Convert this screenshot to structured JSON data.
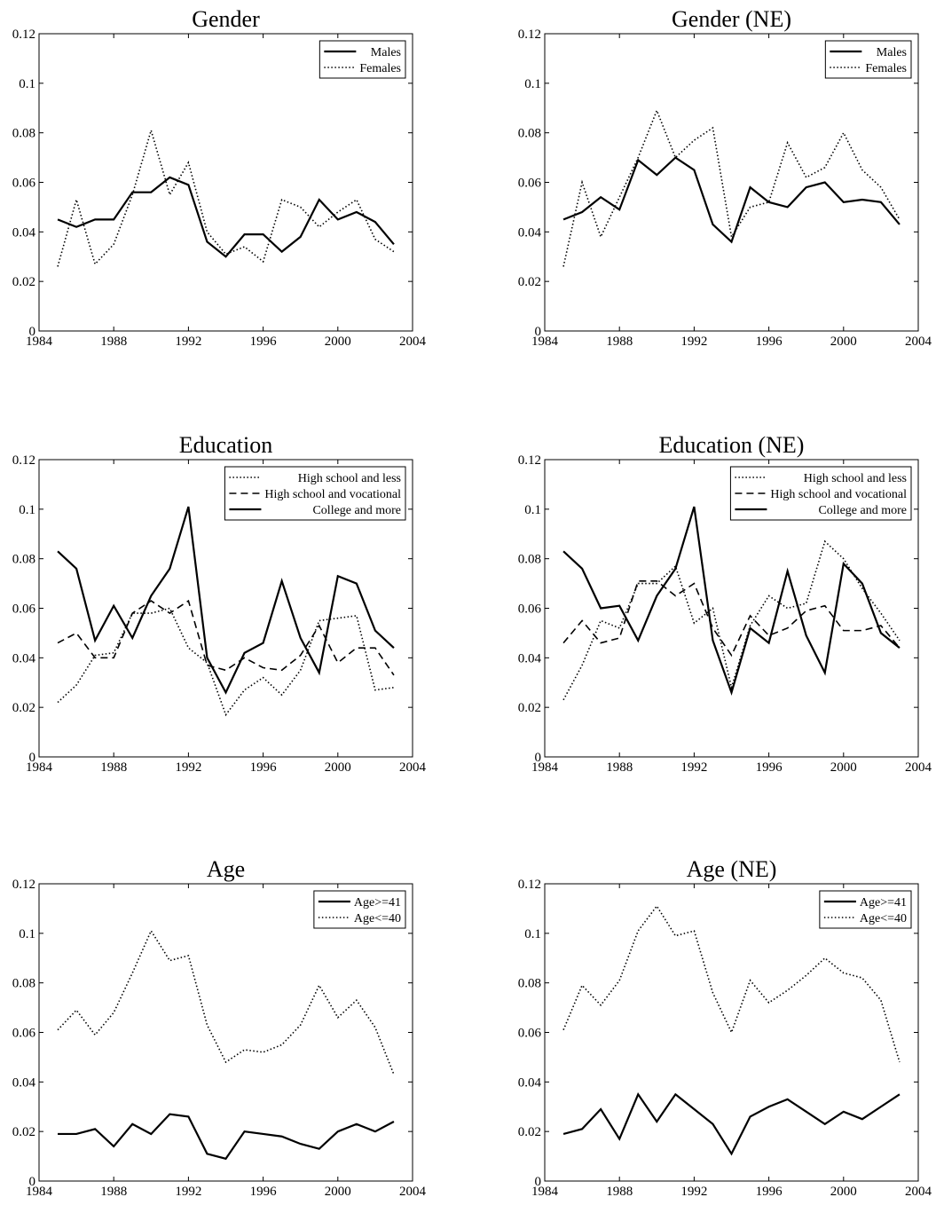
{
  "chart_data": [
    {
      "type": "line",
      "title": "Gender",
      "x": [
        1985,
        1986,
        1987,
        1988,
        1989,
        1990,
        1991,
        1992,
        1993,
        1994,
        1995,
        1996,
        1997,
        1998,
        1999,
        2000,
        2001,
        2002,
        2003
      ],
      "xlim": [
        1984,
        2004
      ],
      "xticks": [
        1984,
        1988,
        1992,
        1996,
        2000,
        2004
      ],
      "ylim": [
        0,
        0.12
      ],
      "yticks": [
        0,
        0.02,
        0.04,
        0.06,
        0.08,
        0.1,
        0.12
      ],
      "legend": "upper right",
      "series": [
        {
          "name": "Males",
          "color": "#000000",
          "style": "solid",
          "values": [
            0.045,
            0.042,
            0.045,
            0.045,
            0.056,
            0.056,
            0.062,
            0.059,
            0.036,
            0.03,
            0.039,
            0.039,
            0.032,
            0.038,
            0.053,
            0.045,
            0.048,
            0.044,
            0.035
          ]
        },
        {
          "name": "Females",
          "color": "#000000",
          "style": "dotted",
          "values": [
            0.026,
            0.053,
            0.027,
            0.035,
            0.055,
            0.081,
            0.055,
            0.068,
            0.04,
            0.031,
            0.034,
            0.028,
            0.053,
            0.05,
            0.042,
            0.048,
            0.053,
            0.037,
            0.032
          ]
        }
      ]
    },
    {
      "type": "line",
      "title": "Gender (NE)",
      "x": [
        1985,
        1986,
        1987,
        1988,
        1989,
        1990,
        1991,
        1992,
        1993,
        1994,
        1995,
        1996,
        1997,
        1998,
        1999,
        2000,
        2001,
        2002,
        2003
      ],
      "xlim": [
        1984,
        2004
      ],
      "xticks": [
        1984,
        1988,
        1992,
        1996,
        2000,
        2004
      ],
      "ylim": [
        0,
        0.12
      ],
      "yticks": [
        0,
        0.02,
        0.04,
        0.06,
        0.08,
        0.1,
        0.12
      ],
      "legend": "upper right",
      "series": [
        {
          "name": "Males",
          "color": "#000000",
          "style": "solid",
          "values": [
            0.045,
            0.048,
            0.054,
            0.049,
            0.069,
            0.063,
            0.07,
            0.065,
            0.043,
            0.036,
            0.058,
            0.052,
            0.05,
            0.058,
            0.06,
            0.052,
            0.053,
            0.052,
            0.043
          ]
        },
        {
          "name": "Females",
          "color": "#000000",
          "style": "dotted",
          "values": [
            0.026,
            0.06,
            0.038,
            0.054,
            0.07,
            0.089,
            0.07,
            0.077,
            0.082,
            0.038,
            0.05,
            0.052,
            0.076,
            0.062,
            0.066,
            0.08,
            0.065,
            0.058,
            0.045
          ]
        }
      ]
    },
    {
      "type": "line",
      "title": "Education",
      "x": [
        1985,
        1986,
        1987,
        1988,
        1989,
        1990,
        1991,
        1992,
        1993,
        1994,
        1995,
        1996,
        1997,
        1998,
        1999,
        2000,
        2001,
        2002,
        2003
      ],
      "xlim": [
        1984,
        2004
      ],
      "xticks": [
        1984,
        1988,
        1992,
        1996,
        2000,
        2004
      ],
      "ylim": [
        0,
        0.12
      ],
      "yticks": [
        0,
        0.02,
        0.04,
        0.06,
        0.08,
        0.1,
        0.12
      ],
      "legend": "upper right",
      "series": [
        {
          "name": "High school and less",
          "color": "#000000",
          "style": "dotted",
          "values": [
            0.022,
            0.029,
            0.041,
            0.042,
            0.058,
            0.058,
            0.06,
            0.044,
            0.038,
            0.017,
            0.027,
            0.032,
            0.025,
            0.035,
            0.055,
            0.056,
            0.057,
            0.027,
            0.028
          ]
        },
        {
          "name": "High school and vocational",
          "color": "#000000",
          "style": "dashed",
          "values": [
            0.046,
            0.05,
            0.04,
            0.04,
            0.058,
            0.063,
            0.058,
            0.063,
            0.037,
            0.035,
            0.04,
            0.036,
            0.035,
            0.041,
            0.053,
            0.038,
            0.044,
            0.044,
            0.033
          ]
        },
        {
          "name": "College and more",
          "color": "#000000",
          "style": "solid",
          "values": [
            0.083,
            0.076,
            0.047,
            0.061,
            0.048,
            0.065,
            0.076,
            0.101,
            0.04,
            0.026,
            0.042,
            0.046,
            0.071,
            0.048,
            0.034,
            0.073,
            0.07,
            0.051,
            0.044
          ]
        }
      ]
    },
    {
      "type": "line",
      "title": "Education (NE)",
      "x": [
        1985,
        1986,
        1987,
        1988,
        1989,
        1990,
        1991,
        1992,
        1993,
        1994,
        1995,
        1996,
        1997,
        1998,
        1999,
        2000,
        2001,
        2002,
        2003
      ],
      "xlim": [
        1984,
        2004
      ],
      "xticks": [
        1984,
        1988,
        1992,
        1996,
        2000,
        2004
      ],
      "ylim": [
        0,
        0.12
      ],
      "yticks": [
        0,
        0.02,
        0.04,
        0.06,
        0.08,
        0.1,
        0.12
      ],
      "legend": "upper right",
      "series": [
        {
          "name": "High school and less",
          "color": "#000000",
          "style": "dotted",
          "values": [
            0.023,
            0.037,
            0.055,
            0.052,
            0.07,
            0.07,
            0.077,
            0.054,
            0.06,
            0.028,
            0.053,
            0.065,
            0.06,
            0.062,
            0.087,
            0.08,
            0.068,
            0.058,
            0.047
          ]
        },
        {
          "name": "High school and vocational",
          "color": "#000000",
          "style": "dashed",
          "values": [
            0.046,
            0.055,
            0.046,
            0.048,
            0.071,
            0.071,
            0.065,
            0.07,
            0.052,
            0.041,
            0.057,
            0.049,
            0.052,
            0.059,
            0.061,
            0.051,
            0.051,
            0.053,
            0.044
          ]
        },
        {
          "name": "College and more",
          "color": "#000000",
          "style": "solid",
          "values": [
            0.083,
            0.076,
            0.06,
            0.061,
            0.047,
            0.065,
            0.076,
            0.101,
            0.047,
            0.026,
            0.052,
            0.046,
            0.075,
            0.049,
            0.034,
            0.078,
            0.07,
            0.05,
            0.044
          ]
        }
      ]
    },
    {
      "type": "line",
      "title": "Age",
      "x": [
        1985,
        1986,
        1987,
        1988,
        1989,
        1990,
        1991,
        1992,
        1993,
        1994,
        1995,
        1996,
        1997,
        1998,
        1999,
        2000,
        2001,
        2002,
        2003
      ],
      "xlim": [
        1984,
        2004
      ],
      "xticks": [
        1984,
        1988,
        1992,
        1996,
        2000,
        2004
      ],
      "ylim": [
        0,
        0.12
      ],
      "yticks": [
        0,
        0.02,
        0.04,
        0.06,
        0.08,
        0.1,
        0.12
      ],
      "legend": "upper right",
      "series": [
        {
          "name": "Age>=41",
          "color": "#000000",
          "style": "solid",
          "values": [
            0.019,
            0.019,
            0.021,
            0.014,
            0.023,
            0.019,
            0.027,
            0.026,
            0.011,
            0.009,
            0.02,
            0.019,
            0.018,
            0.015,
            0.013,
            0.02,
            0.023,
            0.02,
            0.024
          ]
        },
        {
          "name": "Age<=40",
          "color": "#000000",
          "style": "dotted",
          "values": [
            0.061,
            0.069,
            0.059,
            0.068,
            0.084,
            0.101,
            0.089,
            0.091,
            0.063,
            0.048,
            0.053,
            0.052,
            0.055,
            0.063,
            0.079,
            0.066,
            0.073,
            0.062,
            0.043
          ]
        }
      ]
    },
    {
      "type": "line",
      "title": "Age (NE)",
      "x": [
        1985,
        1986,
        1987,
        1988,
        1989,
        1990,
        1991,
        1992,
        1993,
        1994,
        1995,
        1996,
        1997,
        1998,
        1999,
        2000,
        2001,
        2002,
        2003
      ],
      "xlim": [
        1984,
        2004
      ],
      "xticks": [
        1984,
        1988,
        1992,
        1996,
        2000,
        2004
      ],
      "ylim": [
        0,
        0.12
      ],
      "yticks": [
        0,
        0.02,
        0.04,
        0.06,
        0.08,
        0.1,
        0.12
      ],
      "legend": "upper right",
      "series": [
        {
          "name": "Age>=41",
          "color": "#000000",
          "style": "solid",
          "values": [
            0.019,
            0.021,
            0.029,
            0.017,
            0.035,
            0.024,
            0.035,
            0.029,
            0.023,
            0.011,
            0.026,
            0.03,
            0.033,
            0.028,
            0.023,
            0.028,
            0.025,
            0.03,
            0.035
          ]
        },
        {
          "name": "Age<=40",
          "color": "#000000",
          "style": "dotted",
          "values": [
            0.061,
            0.079,
            0.071,
            0.081,
            0.101,
            0.111,
            0.099,
            0.101,
            0.076,
            0.06,
            0.081,
            0.072,
            0.077,
            0.083,
            0.09,
            0.084,
            0.082,
            0.073,
            0.048
          ]
        }
      ]
    }
  ]
}
